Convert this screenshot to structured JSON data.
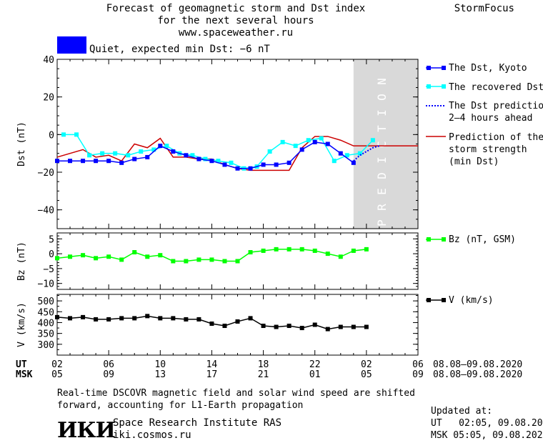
{
  "header": {
    "title_line1": "Forecast of geomagnetic storm and Dst index",
    "title_line2": "for the next several hours",
    "title_line3": "www.spaceweather.ru",
    "brand": "StormFocus"
  },
  "status": {
    "text": "Quiet, expected min Dst: −6 nT",
    "color": "#0000ff"
  },
  "colors": {
    "dst_kyoto": "#0000ff",
    "dst_recovered": "#00ffff",
    "dst_prediction": "#0000ff",
    "storm_strength": "#cc0000",
    "bz": "#00ff00",
    "v": "#000000",
    "prediction_band": "#d9d9d9"
  },
  "time_axis": {
    "ut_label": "UT",
    "msk_label": "MSK",
    "ut_ticks": [
      "02",
      "06",
      "10",
      "14",
      "18",
      "22",
      "02",
      "06"
    ],
    "msk_ticks": [
      "05",
      "09",
      "13",
      "17",
      "21",
      "01",
      "05",
      "09"
    ],
    "ut_range_text": "08.08–09.08.2020",
    "msk_range_text": "08.08–09.08.2020"
  },
  "chart_data": [
    {
      "type": "line",
      "panel": "dst",
      "ylabel": "Dst (nT)",
      "ylim": [
        -50,
        40
      ],
      "yticks": [
        "40",
        "20",
        "0",
        "−20",
        "−40"
      ],
      "x_unit": "hours since 02 UT 08.08.2020",
      "xlim": [
        0,
        28
      ],
      "prediction_band": {
        "from": 23,
        "to": 28,
        "label": "PREDICTION"
      },
      "series": [
        {
          "name": "The Dst, Kyoto",
          "marker": "square",
          "x": [
            0,
            1,
            2,
            3,
            4,
            5,
            6,
            7,
            8,
            9,
            10,
            11,
            12,
            13,
            14,
            15,
            16,
            17,
            18,
            19,
            20,
            21,
            22,
            23
          ],
          "values": [
            -14,
            -14,
            -14,
            -14,
            -14,
            -15,
            -13,
            -12,
            -6,
            -9,
            -11,
            -13,
            -14,
            -16,
            -18,
            -18,
            -16,
            -16,
            -15,
            -8,
            -4,
            -5,
            -10,
            -15
          ]
        },
        {
          "name": "The recovered Dst",
          "marker": "square",
          "x": [
            0.5,
            1.5,
            2.5,
            3.5,
            4.5,
            5.5,
            6.5,
            7.5,
            8.5,
            9.5,
            10.5,
            11.5,
            12.5,
            13.5,
            14.5,
            15.5,
            16.5,
            17.5,
            18.5,
            19.5,
            20.5,
            21.5,
            22.5,
            23.5,
            24.5
          ],
          "values": [
            0,
            0,
            -11,
            -10,
            -10,
            -11,
            -9,
            -8,
            -6,
            -10,
            -11,
            -13,
            -14,
            -15,
            -18,
            -17,
            -9,
            -4,
            -6,
            -3,
            -2,
            -14,
            -11,
            -10,
            -3
          ]
        },
        {
          "name": "The Dst prediction\n2–4 hours ahead",
          "style": "dotted",
          "x": [
            23,
            23.5,
            24,
            24.5,
            25
          ],
          "values": [
            -14,
            -11,
            -9,
            -7,
            -6
          ]
        },
        {
          "name": "Prediction of the\nstorm strength\n(min Dst)",
          "x": [
            0,
            2,
            3,
            4,
            5,
            6,
            7,
            8,
            9,
            10,
            11,
            12,
            13,
            14,
            15,
            16,
            17,
            18,
            19,
            20,
            21,
            22,
            23,
            28
          ],
          "values": [
            -12,
            -8,
            -12,
            -11,
            -14,
            -5,
            -7,
            -2,
            -12,
            -12,
            -13,
            -13,
            -16,
            -18,
            -19,
            -19,
            -19,
            -19,
            -7,
            -1,
            -1,
            -3,
            -6,
            -6
          ]
        }
      ]
    },
    {
      "type": "line",
      "panel": "bz",
      "ylabel": "Bz (nT)",
      "ylim": [
        -12,
        7
      ],
      "yticks": [
        "5",
        "0",
        "−5",
        "−10"
      ],
      "series": [
        {
          "name": "Bz (nT, GSM)",
          "x": [
            0,
            1,
            2,
            3,
            4,
            5,
            6,
            7,
            8,
            9,
            10,
            11,
            12,
            13,
            14,
            15,
            16,
            17,
            18,
            19,
            20,
            21,
            22,
            23,
            24
          ],
          "values": [
            -1.5,
            -1,
            -0.5,
            -1.5,
            -1,
            -2,
            0.5,
            -1,
            -0.5,
            -2.5,
            -2.5,
            -2,
            -2,
            -2.5,
            -2.5,
            0.5,
            1,
            1.5,
            1.5,
            1.5,
            1,
            0,
            -1,
            1,
            1.5
          ]
        }
      ]
    },
    {
      "type": "line",
      "panel": "v",
      "ylabel": "V (km/s)",
      "ylim": [
        250,
        530
      ],
      "yticks": [
        "500",
        "450",
        "400",
        "350",
        "300"
      ],
      "series": [
        {
          "name": "V (km/s)",
          "x": [
            0,
            1,
            2,
            3,
            4,
            5,
            6,
            7,
            8,
            9,
            10,
            11,
            12,
            13,
            14,
            15,
            16,
            17,
            18,
            19,
            20,
            21,
            22,
            23,
            24
          ],
          "values": [
            425,
            420,
            425,
            415,
            415,
            420,
            420,
            430,
            420,
            420,
            415,
            415,
            395,
            385,
            405,
            420,
            385,
            380,
            385,
            375,
            390,
            370,
            380,
            380,
            380
          ]
        }
      ]
    }
  ],
  "legend": {
    "dst_kyoto": "The Dst, Kyoto",
    "dst_recovered": "The recovered Dst",
    "dst_pred_1": "The Dst prediction",
    "dst_pred_2": "2–4 hours ahead",
    "storm_1": "Prediction of the",
    "storm_2": "storm strength",
    "storm_3": "(min Dst)",
    "bz": "Bz (nT, GSM)",
    "v": "V (km/s)"
  },
  "footer": {
    "caption_line1": "Real-time DSCOVR magnetic field and solar wind speed are shifted",
    "caption_line2": "forward, accounting for L1-Earth propagation",
    "logo_text": "ИКИ",
    "institute": "Space Research Institute RAS",
    "site": "iki.cosmos.ru",
    "updated_label": "Updated at:",
    "updated_ut": "UT   02:05, 09.08.2020",
    "updated_msk": "MSK 05:05, 09.08.2020"
  }
}
